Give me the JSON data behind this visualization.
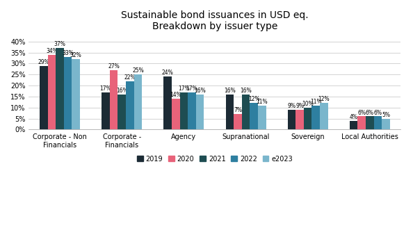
{
  "title": "Sustainable bond issuances in USD eq.\nBreakdown by issuer type",
  "categories": [
    "Corporate - Non\nFinancials",
    "Corporate -\nFinancials",
    "Agency",
    "Supranational",
    "Sovereign",
    "Local Authorities"
  ],
  "series": {
    "2019": [
      29,
      17,
      24,
      16,
      9,
      4
    ],
    "2020": [
      34,
      27,
      14,
      7,
      9,
      6
    ],
    "2021": [
      37,
      16,
      17,
      16,
      10,
      6
    ],
    "2022": [
      33,
      22,
      17,
      12,
      11,
      6
    ],
    "e2023": [
      32,
      25,
      16,
      11,
      12,
      5
    ]
  },
  "colors": {
    "2019": "#1c2b35",
    "2020": "#e8637a",
    "2021": "#1e4d52",
    "2022": "#2e7fa0",
    "e2023": "#7ab6cc"
  },
  "legend_order": [
    "2019",
    "2020",
    "2021",
    "2022",
    "e2023"
  ],
  "ylim": [
    0,
    42
  ],
  "yticks": [
    0,
    5,
    10,
    15,
    20,
    25,
    30,
    35,
    40
  ],
  "bar_width": 0.13,
  "label_fontsize": 5.5,
  "axis_fontsize": 7,
  "title_fontsize": 10
}
